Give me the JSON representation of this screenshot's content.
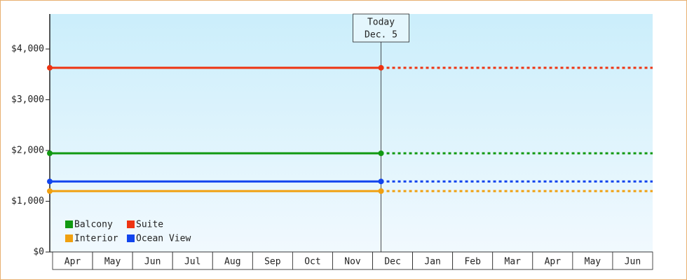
{
  "chart_data": {
    "type": "line",
    "categories": [
      "Apr",
      "May",
      "Jun",
      "Jul",
      "Aug",
      "Sep",
      "Oct",
      "Nov",
      "Dec",
      "Jan",
      "Feb",
      "Mar",
      "Apr",
      "May",
      "Jun"
    ],
    "series": [
      {
        "name": "Balcony",
        "color": "#119911",
        "values": [
          1945,
          1945,
          1945,
          1945,
          1945,
          1945,
          1945,
          1945,
          1945,
          1945,
          1945,
          1945,
          1945,
          1945,
          1945
        ]
      },
      {
        "name": "Suite",
        "color": "#ee3311",
        "values": [
          3630,
          3630,
          3630,
          3630,
          3630,
          3630,
          3630,
          3630,
          3630,
          3630,
          3630,
          3630,
          3630,
          3630,
          3630
        ]
      },
      {
        "name": "Interior",
        "color": "#f0a010",
        "values": [
          1200,
          1200,
          1200,
          1200,
          1200,
          1200,
          1200,
          1200,
          1200,
          1200,
          1200,
          1200,
          1200,
          1200,
          1200
        ]
      },
      {
        "name": "Ocean View",
        "color": "#1144ee",
        "values": [
          1390,
          1390,
          1390,
          1390,
          1390,
          1390,
          1390,
          1390,
          1390,
          1390,
          1390,
          1390,
          1390,
          1390,
          1390
        ]
      }
    ],
    "annotation": {
      "category": "Dec",
      "lines": [
        "Today",
        "Dec. 5"
      ]
    },
    "ylim": [
      0,
      4690
    ],
    "yticks": [
      {
        "value": 0,
        "label": "$0"
      },
      {
        "value": 1000,
        "label": "$1,000"
      },
      {
        "value": 2000,
        "label": "$2,000"
      },
      {
        "value": 3000,
        "label": "$3,000"
      },
      {
        "value": 4000,
        "label": "$4,000"
      }
    ],
    "legend": "lower left"
  }
}
